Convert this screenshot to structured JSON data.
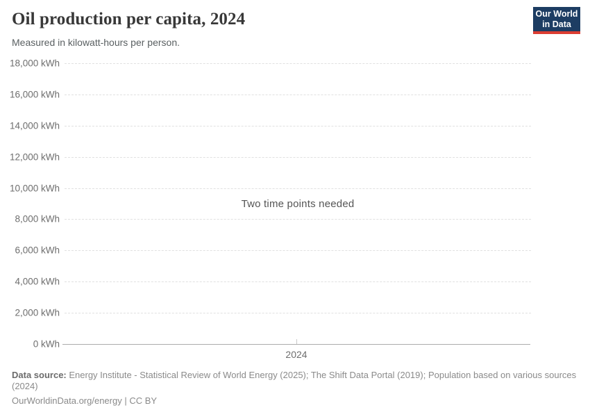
{
  "header": {
    "title": "Oil production per capita, 2024",
    "subtitle": "Measured in kilowatt-hours per person.",
    "logo": {
      "line1": "Our World",
      "line2": "in Data",
      "bg_color": "#1d3d63",
      "accent_color": "#dc3e32"
    }
  },
  "chart_data": {
    "type": "line",
    "title": "Oil production per capita, 2024",
    "subtitle": "Measured in kilowatt-hours per person.",
    "unit": "kilowatt-hours per person",
    "series": [],
    "message": "Two time points needed",
    "x": [
      2024
    ],
    "xtick_labels": [
      "2024"
    ],
    "ylim": [
      0,
      18000
    ],
    "yticks": [
      0,
      2000,
      4000,
      6000,
      8000,
      10000,
      12000,
      14000,
      16000,
      18000
    ],
    "ytick_labels": [
      "0 kWh",
      "2,000 kWh",
      "4,000 kWh",
      "6,000 kWh",
      "8,000 kWh",
      "10,000 kWh",
      "12,000 kWh",
      "14,000 kWh",
      "16,000 kWh",
      "18,000 kWh"
    ],
    "grid": "horizontal-dashed",
    "legend": "none",
    "grid_color": "#e0e0e0",
    "axis_color": "#ababab"
  },
  "footer": {
    "datasource_label": "Data source:",
    "datasource_text": " Energy Institute - Statistical Review of World Energy (2025); The Shift Data Portal (2019); Population based on various sources (2024)",
    "url": "OurWorldinData.org/energy",
    "separator": " | ",
    "license": "CC BY"
  }
}
